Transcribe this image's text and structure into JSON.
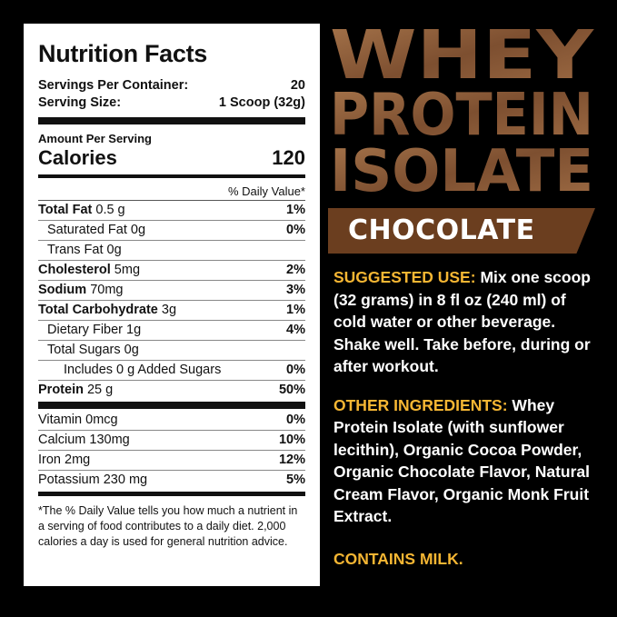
{
  "nutrition_facts": {
    "title": "Nutrition Facts",
    "servings_per_container": {
      "label": "Servings Per Container:",
      "value": "20"
    },
    "serving_size": {
      "label": "Serving Size:",
      "value": "1 Scoop (32g)"
    },
    "amount_per_serving": "Amount Per Serving",
    "calories": {
      "label": "Calories",
      "value": "120"
    },
    "daily_value_header": "% Daily Value*",
    "rows": [
      {
        "name": "Total Fat",
        "amount": "0.5 g",
        "dv": "1%"
      },
      {
        "name": "Saturated Fat",
        "amount": "0g",
        "dv": "0%"
      },
      {
        "name": "Trans Fat",
        "amount": "0g"
      },
      {
        "name": "Cholesterol",
        "amount": "5mg",
        "dv": "2%"
      },
      {
        "name": "Sodium",
        "amount": "70mg",
        "dv": "3%"
      },
      {
        "name": "Total Carbohydrate",
        "amount": "3g",
        "dv": "1%"
      },
      {
        "name": "Dietary Fiber",
        "amount": "1g",
        "dv": "4%"
      },
      {
        "name": "Total Sugars",
        "amount": "0g"
      },
      {
        "name": "Includes 0 g Added Sugars",
        "dv": "0%"
      },
      {
        "name": "Protein",
        "amount": "25 g",
        "dv": "50%"
      }
    ],
    "vitamins": [
      {
        "name": "Vitamin",
        "amount": "0mcg",
        "dv": "0%"
      },
      {
        "name": "Calcium",
        "amount": "130mg",
        "dv": "10%"
      },
      {
        "name": "Iron",
        "amount": "2mg",
        "dv": "12%"
      },
      {
        "name": "Potassium",
        "amount": "230 mg",
        "dv": "5%"
      }
    ],
    "footnote": "*The % Daily Value tells you how much a nutrient in a serving of food contributes to a daily diet. 2,000 calories a day is used for general nutrition advice."
  },
  "product": {
    "title": [
      "WHEY",
      "PROTEIN",
      "ISOLATE"
    ],
    "flavor": "CHOCOLATE",
    "suggested_use": {
      "label": "SUGGESTED USE:",
      "text": "Mix one scoop (32 grams) in 8 fl oz (240 ml) of cold water or other beverage. Shake well. Take before, during or after workout."
    },
    "other_ingredients": {
      "label": "OTHER INGREDIENTS:",
      "text": "Whey Protein Isolate (with sunflower lecithin), Organic Cocoa Powder, Organic Chocolate Flavor, Natural Cream Flavor, Organic Monk Fruit Extract."
    },
    "allergen": "CONTAINS MILK."
  }
}
